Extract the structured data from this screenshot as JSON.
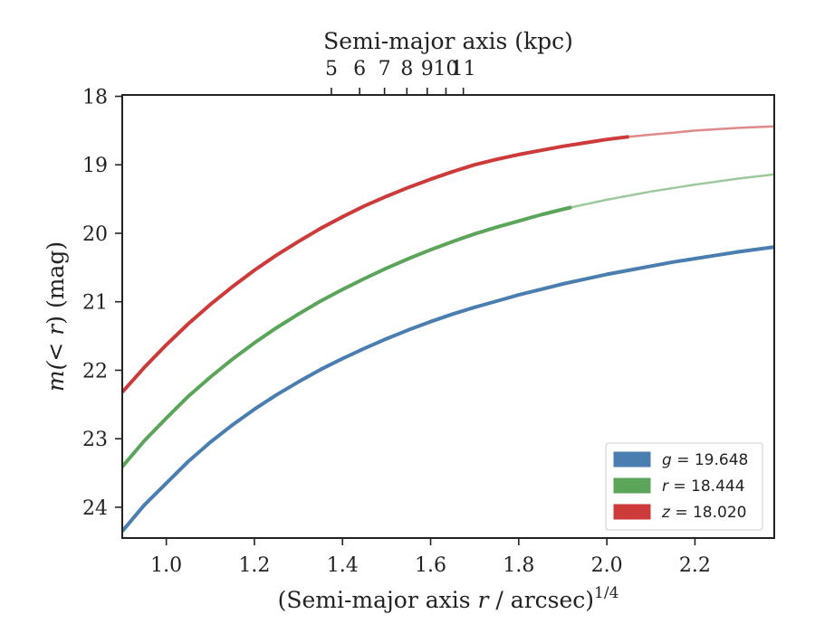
{
  "chart_data": {
    "type": "line",
    "xlabel_bottom": {
      "prefix": "(Semi-major axis ",
      "var": "r",
      "mid": " / arcsec)",
      "sup": "1/4"
    },
    "xlabel_top": "Semi-major axis (kpc)",
    "ylabel": {
      "prefix": "m(",
      "mid": "< r",
      "suffix": ") (mag)"
    },
    "xlim": [
      0.9,
      2.38
    ],
    "ylim": [
      24.45,
      17.98
    ],
    "y_inverted": true,
    "x_ticks": [
      1.0,
      1.2,
      1.4,
      1.6,
      1.8,
      2.0,
      2.2
    ],
    "x_tick_labels": [
      "1.0",
      "1.2",
      "1.4",
      "1.6",
      "1.8",
      "2.0",
      "2.2"
    ],
    "y_ticks": [
      18,
      19,
      20,
      21,
      22,
      23,
      24
    ],
    "y_tick_labels": [
      "18",
      "19",
      "20",
      "21",
      "22",
      "23",
      "24"
    ],
    "top_ticks_kpc": [
      5,
      6,
      7,
      8,
      9,
      10,
      11
    ],
    "top_tick_labels": [
      "5",
      "6",
      "7",
      "8",
      "9",
      "10",
      "11"
    ],
    "kpc_per_arcsec": 1.4,
    "legend_position": "lower right",
    "grid": false,
    "series": [
      {
        "name": "g",
        "legend_value": "19.648",
        "color": "#4a7db0",
        "solid_until": 2.38,
        "points": [
          [
            0.9,
            24.35
          ],
          [
            0.95,
            23.97
          ],
          [
            1.0,
            23.65
          ],
          [
            1.05,
            23.33
          ],
          [
            1.1,
            23.05
          ],
          [
            1.15,
            22.8
          ],
          [
            1.2,
            22.57
          ],
          [
            1.25,
            22.36
          ],
          [
            1.3,
            22.17
          ],
          [
            1.35,
            21.99
          ],
          [
            1.4,
            21.83
          ],
          [
            1.45,
            21.68
          ],
          [
            1.5,
            21.54
          ],
          [
            1.55,
            21.41
          ],
          [
            1.6,
            21.29
          ],
          [
            1.65,
            21.18
          ],
          [
            1.7,
            21.08
          ],
          [
            1.75,
            20.99
          ],
          [
            1.8,
            20.9
          ],
          [
            1.85,
            20.82
          ],
          [
            1.9,
            20.74
          ],
          [
            1.95,
            20.67
          ],
          [
            2.0,
            20.6
          ],
          [
            2.05,
            20.54
          ],
          [
            2.1,
            20.48
          ],
          [
            2.15,
            20.42
          ],
          [
            2.2,
            20.37
          ],
          [
            2.25,
            20.32
          ],
          [
            2.3,
            20.27
          ],
          [
            2.38,
            20.2
          ]
        ]
      },
      {
        "name": "r",
        "legend_value": "18.444",
        "color": "#5aa55a",
        "solid_until": 1.92,
        "points": [
          [
            0.9,
            23.41
          ],
          [
            0.95,
            23.03
          ],
          [
            1.0,
            22.7
          ],
          [
            1.05,
            22.38
          ],
          [
            1.1,
            22.1
          ],
          [
            1.15,
            21.84
          ],
          [
            1.2,
            21.6
          ],
          [
            1.25,
            21.38
          ],
          [
            1.3,
            21.18
          ],
          [
            1.35,
            20.99
          ],
          [
            1.4,
            20.82
          ],
          [
            1.45,
            20.66
          ],
          [
            1.5,
            20.51
          ],
          [
            1.55,
            20.37
          ],
          [
            1.6,
            20.24
          ],
          [
            1.65,
            20.12
          ],
          [
            1.7,
            20.01
          ],
          [
            1.75,
            19.91
          ],
          [
            1.8,
            19.82
          ],
          [
            1.85,
            19.73
          ],
          [
            1.9,
            19.65
          ],
          [
            1.92,
            19.62
          ],
          [
            2.0,
            19.51
          ],
          [
            2.1,
            19.39
          ],
          [
            2.2,
            19.29
          ],
          [
            2.3,
            19.2
          ],
          [
            2.38,
            19.14
          ]
        ]
      },
      {
        "name": "z",
        "legend_value": "18.020",
        "color": "#cc3a3a",
        "solid_until": 2.05,
        "points": [
          [
            0.9,
            22.32
          ],
          [
            0.95,
            21.96
          ],
          [
            1.0,
            21.63
          ],
          [
            1.05,
            21.32
          ],
          [
            1.1,
            21.04
          ],
          [
            1.15,
            20.78
          ],
          [
            1.2,
            20.54
          ],
          [
            1.25,
            20.32
          ],
          [
            1.3,
            20.12
          ],
          [
            1.35,
            19.93
          ],
          [
            1.4,
            19.76
          ],
          [
            1.45,
            19.6
          ],
          [
            1.5,
            19.46
          ],
          [
            1.55,
            19.33
          ],
          [
            1.6,
            19.21
          ],
          [
            1.65,
            19.1
          ],
          [
            1.7,
            19.0
          ],
          [
            1.75,
            18.92
          ],
          [
            1.8,
            18.85
          ],
          [
            1.85,
            18.79
          ],
          [
            1.9,
            18.73
          ],
          [
            1.95,
            18.68
          ],
          [
            2.0,
            18.63
          ],
          [
            2.05,
            18.59
          ],
          [
            2.1,
            18.56
          ],
          [
            2.15,
            18.53
          ],
          [
            2.2,
            18.5
          ],
          [
            2.25,
            18.48
          ],
          [
            2.3,
            18.46
          ],
          [
            2.38,
            18.44
          ]
        ]
      }
    ]
  }
}
